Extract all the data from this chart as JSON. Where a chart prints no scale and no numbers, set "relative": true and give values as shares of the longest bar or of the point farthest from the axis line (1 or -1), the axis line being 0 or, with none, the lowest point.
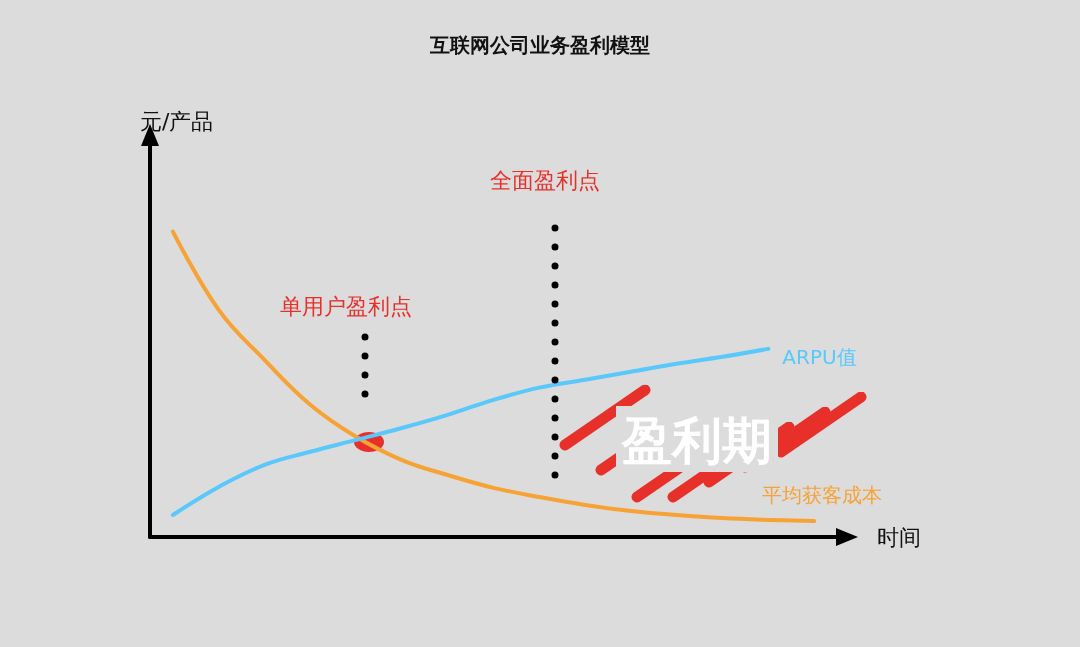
{
  "chart_data": {
    "type": "line",
    "title": "互联网公司业务盈利模型",
    "xlabel": "时间",
    "ylabel": "元/产品",
    "relative": true,
    "marker": "none",
    "line_style": "solid",
    "grid": false,
    "legend": false,
    "categories": [
      null,
      null,
      null,
      null,
      null,
      null,
      null,
      null,
      null,
      null,
      null,
      null,
      null,
      null,
      null
    ],
    "series": [
      {
        "name": "平均获客成本",
        "color": "#f7a234",
        "values": [
          1,
          0.744,
          0.58,
          0.433,
          0.328,
          0.252,
          0.203,
          0.161,
          0.131,
          0.105,
          0.085,
          0.072,
          0.062,
          0.056,
          0.052
        ]
      },
      {
        "name": "ARPU值",
        "color": "#5ac8fa",
        "values": [
          0.072,
          0.164,
          0.236,
          0.279,
          0.318,
          0.357,
          0.4,
          0.449,
          0.489,
          0.515,
          0.541,
          0.567,
          0.59,
          0.616,
          null
        ]
      }
    ],
    "annotations": [
      "单用户盈利点",
      "全面盈利点",
      "盈利期"
    ]
  }
}
